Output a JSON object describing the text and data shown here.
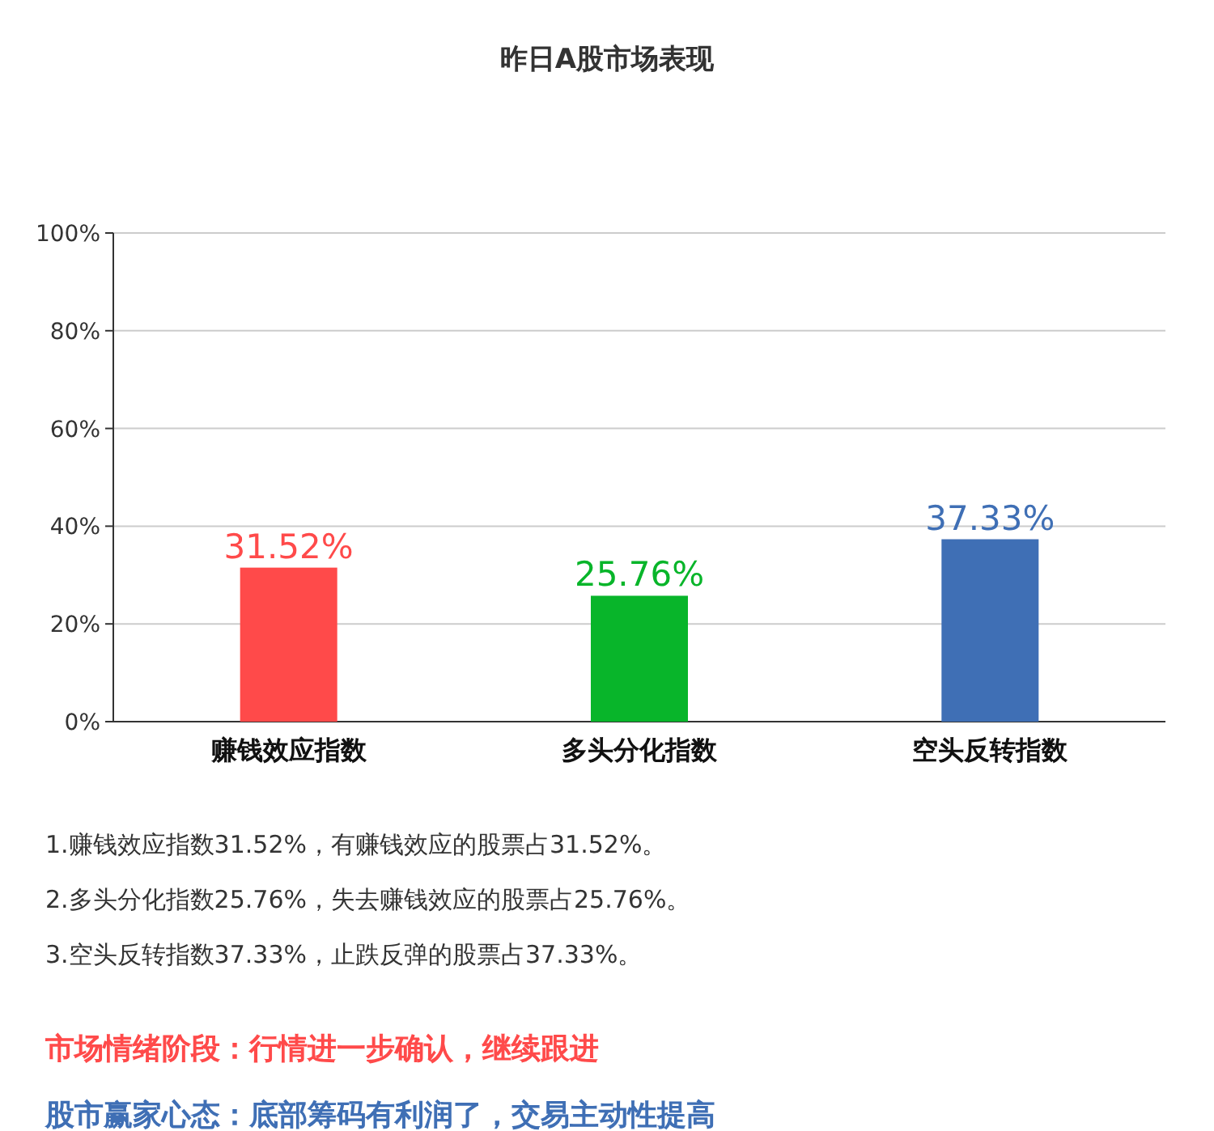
{
  "chart_data": {
    "type": "bar",
    "title": "昨日A股市场表现",
    "categories": [
      "赚钱效应指数",
      "多头分化指数",
      "空头反转指数"
    ],
    "values": [
      31.52,
      25.76,
      37.33
    ],
    "colors": [
      "#ff4a4a",
      "#08b52a",
      "#3f6fb5"
    ],
    "value_labels": [
      "31.52%",
      "25.76%",
      "37.33%"
    ],
    "ylim": [
      0,
      100
    ],
    "yticks": [
      {
        "value": 0,
        "label": "0%"
      },
      {
        "value": 20,
        "label": "20%"
      },
      {
        "value": 40,
        "label": "40%"
      },
      {
        "value": 60,
        "label": "60%"
      },
      {
        "value": 80,
        "label": "80%"
      },
      {
        "value": 100,
        "label": "100%"
      }
    ],
    "grid": "y",
    "annotations": [
      "1.赚钱效应指数31.52%，有赚钱效应的股票占31.52%。",
      "2.多头分化指数25.76%，失去赚钱效应的股票占25.76%。",
      "3.空头反转指数37.33%，止跌反弹的股票占37.33%。",
      "市场情绪阶段：行情进一步确认，继续跟进",
      "股市赢家心态：底部筹码有利润了，交易主动性提高"
    ]
  }
}
